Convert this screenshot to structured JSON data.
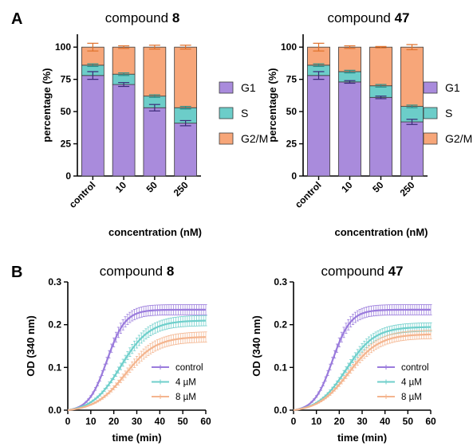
{
  "panel_labels": {
    "a": "A",
    "b": "B"
  },
  "colors": {
    "g1": "#a98bdc",
    "s": "#6ccdc9",
    "g2m": "#f7a679",
    "g1_err": "#3b2a78",
    "s_err": "#2b8f8a",
    "g2m_err": "#e0702a",
    "control": "#9a7bdc",
    "um4": "#6fcfcb",
    "um8": "#f4b58f"
  },
  "chart_data": [
    {
      "type": "bar",
      "stacked": true,
      "title_prefix": "compound ",
      "title_bold": "8",
      "xlabel": "concentration (nM)",
      "ylabel": "percentage (%)",
      "categories": [
        "control",
        "10",
        "50",
        "250"
      ],
      "ylim": [
        0,
        110
      ],
      "yticks": [
        "0",
        "25",
        "50",
        "75",
        "100"
      ],
      "legend_position": "right",
      "series": [
        {
          "name": "G1",
          "values": [
            78,
            71,
            53,
            41
          ],
          "errors": [
            3,
            1.5,
            2.5,
            2
          ]
        },
        {
          "name": "S",
          "values": [
            8,
            8,
            9,
            12
          ],
          "errors": [
            1,
            1,
            1,
            1
          ]
        },
        {
          "name": "G2/M",
          "values": [
            14,
            21,
            38,
            47
          ],
          "errors": [
            3,
            1,
            1.5,
            1.5
          ]
        }
      ]
    },
    {
      "type": "bar",
      "stacked": true,
      "title_prefix": "compound ",
      "title_bold": "47",
      "xlabel": "concentration (nM)",
      "ylabel": "percentage (%)",
      "categories": [
        "control",
        "10",
        "50",
        "250"
      ],
      "ylim": [
        0,
        110
      ],
      "yticks": [
        "0",
        "25",
        "50",
        "75",
        "100"
      ],
      "legend_position": "right",
      "series": [
        {
          "name": "G1",
          "values": [
            78,
            73,
            61,
            42
          ],
          "errors": [
            3,
            1,
            1,
            2
          ]
        },
        {
          "name": "S",
          "values": [
            8,
            8,
            9,
            12
          ],
          "errors": [
            1,
            1,
            1,
            1
          ]
        },
        {
          "name": "G2/M",
          "values": [
            14,
            19,
            30,
            46
          ],
          "errors": [
            3,
            1,
            0.5,
            2
          ]
        }
      ]
    },
    {
      "type": "line",
      "title_prefix": "compound ",
      "title_bold": "8",
      "xlabel": "time (min)",
      "ylabel": "OD (340 nm)",
      "xlim": [
        0,
        60
      ],
      "ylim": [
        0,
        0.3
      ],
      "xticks": [
        "0",
        "10",
        "20",
        "30",
        "40",
        "50",
        "60"
      ],
      "yticks": [
        "0.0",
        "0.1",
        "0.2",
        "0.3"
      ],
      "legend_position": "bottom-right",
      "series": [
        {
          "name": "control",
          "plateau": 0.235,
          "midpoint": 17,
          "rate": 0.25,
          "error": 0.012
        },
        {
          "name": "4 µM",
          "plateau": 0.21,
          "midpoint": 23,
          "rate": 0.16,
          "error": 0.012
        },
        {
          "name": "8 µM",
          "plateau": 0.172,
          "midpoint": 25,
          "rate": 0.15,
          "error": 0.012
        }
      ]
    },
    {
      "type": "line",
      "title_prefix": "compound ",
      "title_bold": "47",
      "xlabel": "time (min)",
      "ylabel": "OD (340 nm)",
      "xlim": [
        0,
        60
      ],
      "ylim": [
        0,
        0.3
      ],
      "xticks": [
        "0",
        "10",
        "20",
        "30",
        "40",
        "50",
        "60"
      ],
      "yticks": [
        "0.0",
        "0.1",
        "0.2",
        "0.3"
      ],
      "legend_position": "bottom-right",
      "series": [
        {
          "name": "control",
          "plateau": 0.235,
          "midpoint": 17,
          "rate": 0.25,
          "error": 0.012
        },
        {
          "name": "4 µM",
          "plateau": 0.195,
          "midpoint": 23,
          "rate": 0.16,
          "error": 0.01
        },
        {
          "name": "8 µM",
          "plateau": 0.178,
          "midpoint": 24,
          "rate": 0.15,
          "error": 0.01
        }
      ]
    }
  ]
}
